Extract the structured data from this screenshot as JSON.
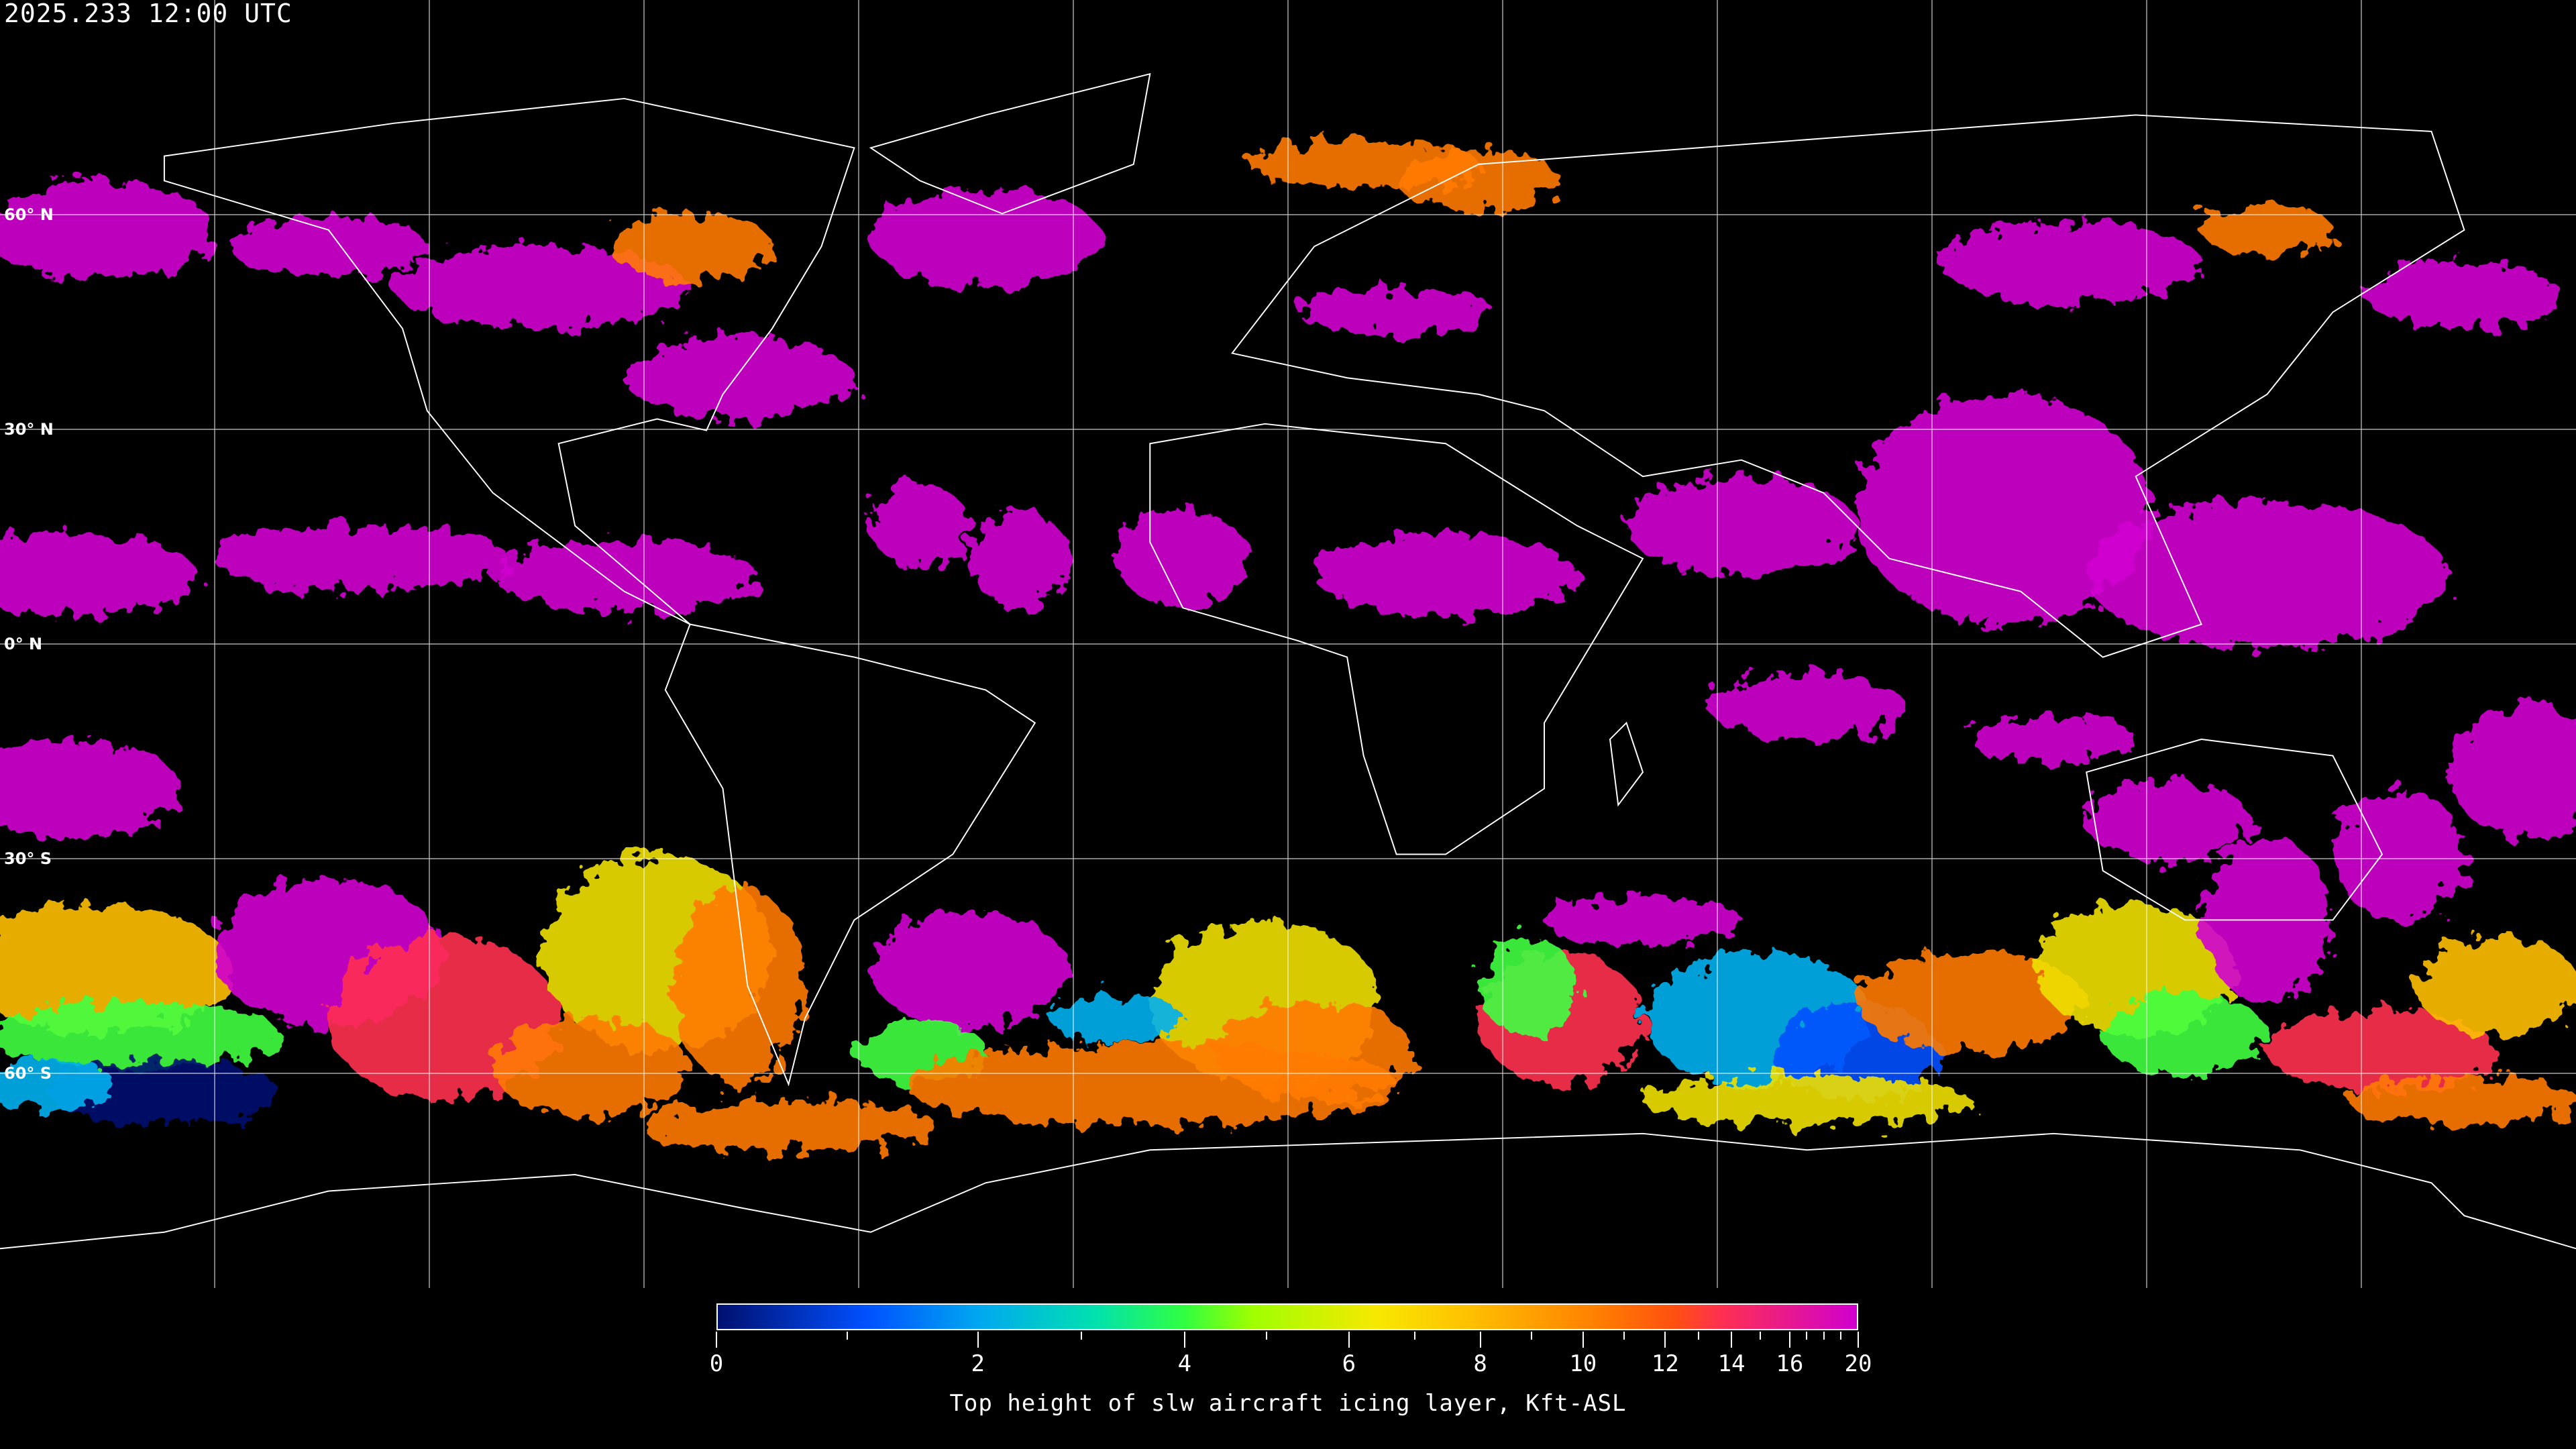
{
  "title": "2025.233 12:00 UTC",
  "latitude_labels": [
    "60° N",
    "30° N",
    "0° N",
    "30° S",
    "60° S"
  ],
  "colorbar": {
    "label": "Top height of slw aircraft icing layer, Kft-ASL",
    "min": 0,
    "max": 20,
    "major_ticks": [
      "0",
      "2",
      "4",
      "6",
      "8",
      "10",
      "12",
      "14",
      "16",
      "20"
    ],
    "minor_ticks": [
      1,
      3,
      5,
      7,
      9,
      11,
      13,
      15,
      17,
      18,
      19
    ],
    "colors": [
      "#001070",
      "#0050ff",
      "#00a8f0",
      "#00e0b0",
      "#30ff40",
      "#a0ff00",
      "#f8e800",
      "#ffc000",
      "#ff8000",
      "#ff5010",
      "#ff3050",
      "#d000d0"
    ]
  },
  "projection": "equirectangular",
  "grid": "30° lat/lon lines"
}
